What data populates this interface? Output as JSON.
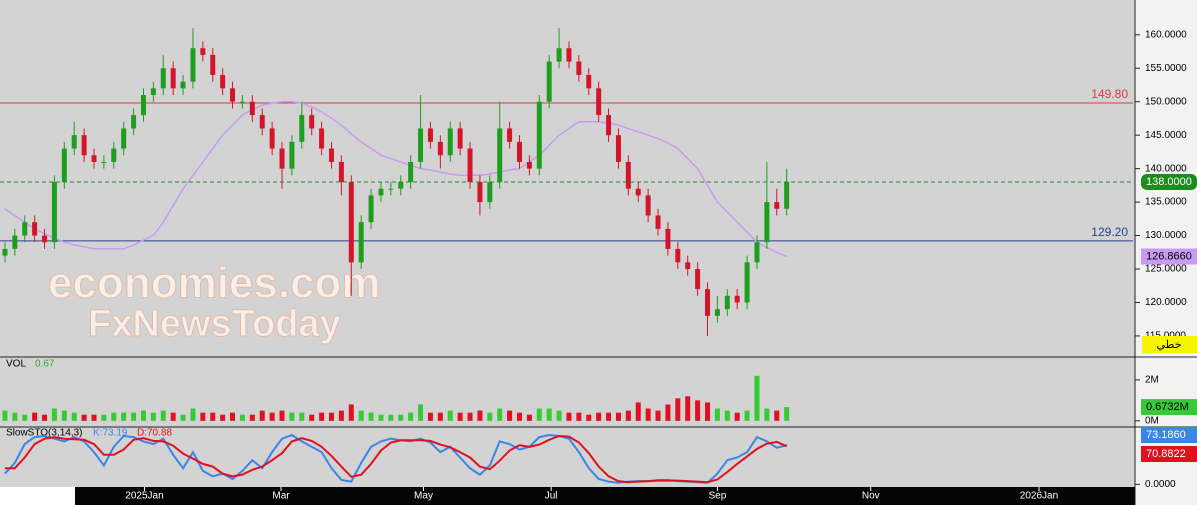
{
  "chart_data": {
    "type": "candlestick",
    "xlim": [
      0,
      114.5
    ],
    "xticks": [
      {
        "value": 14.6,
        "label": "2025Jan"
      },
      {
        "value": 28.4,
        "label": "Mar"
      },
      {
        "value": 42.8,
        "label": "May"
      },
      {
        "value": 55.7,
        "label": "Jul"
      },
      {
        "value": 72.5,
        "label": "Sep"
      },
      {
        "value": 88,
        "label": "Nov"
      },
      {
        "value": 105,
        "label": "2026Jan"
      }
    ],
    "ylim": [
      112,
      165.2
    ],
    "yticks": [
      {
        "value": 115,
        "label": "115.0000"
      },
      {
        "value": 120,
        "label": "120.0000"
      },
      {
        "value": 125,
        "label": "125.0000"
      },
      {
        "value": 130,
        "label": "130.0000"
      },
      {
        "value": 135,
        "label": "135.0000"
      },
      {
        "value": 140,
        "label": "140.0000"
      },
      {
        "value": 145,
        "label": "145.0000"
      },
      {
        "value": 150,
        "label": "150.0000"
      },
      {
        "value": 155,
        "label": "155.0000"
      },
      {
        "value": 160,
        "label": "160.0000"
      }
    ],
    "up_color": "#1e9e1e",
    "down_color": "#d4142a",
    "open": [
      127,
      128,
      130,
      132,
      130,
      129,
      138,
      143,
      145,
      142,
      141,
      141,
      143,
      146,
      148,
      151,
      152,
      155,
      152,
      153,
      158,
      157,
      154,
      152,
      150,
      150,
      148,
      146,
      143,
      140,
      144,
      148,
      146,
      143,
      141,
      138,
      126,
      132,
      136,
      137,
      137,
      138,
      141,
      146,
      144,
      142,
      146,
      143,
      138,
      135,
      138,
      146,
      144,
      141,
      140,
      150,
      156,
      158,
      156,
      154,
      152,
      148,
      145,
      141,
      137,
      136,
      133,
      131,
      128,
      126,
      125,
      122,
      118,
      119,
      121,
      120,
      126,
      129,
      135,
      134
    ],
    "high": [
      129,
      131,
      133,
      133,
      131,
      139,
      144,
      147,
      146,
      143,
      142,
      144,
      147,
      149,
      152,
      153,
      157,
      156,
      154,
      161,
      159,
      158,
      155,
      153,
      151,
      151,
      149,
      147,
      144,
      145,
      150,
      149,
      147,
      144,
      142,
      139,
      133,
      137,
      138,
      138,
      139,
      142,
      151,
      147,
      145,
      147,
      147,
      144,
      139,
      139,
      150,
      147,
      145,
      142,
      151,
      157,
      161,
      159,
      157,
      155,
      153,
      149,
      146,
      142,
      138,
      137,
      134,
      132,
      129,
      127,
      126,
      123,
      121,
      122,
      122,
      127,
      130,
      141,
      137,
      140
    ],
    "low": [
      126,
      127,
      129,
      129,
      128,
      128,
      137,
      142,
      141,
      140,
      140,
      140,
      142,
      145,
      147,
      150,
      151,
      151,
      151,
      152,
      156,
      153,
      151,
      149,
      149,
      147,
      145,
      142,
      137,
      139,
      143,
      145,
      142,
      140,
      136,
      121,
      125,
      131,
      135,
      136,
      136,
      137,
      140,
      143,
      140,
      141,
      142,
      137,
      133,
      134,
      137,
      143,
      140,
      139,
      139,
      149,
      155,
      155,
      153,
      151,
      147,
      144,
      140,
      136,
      135,
      132,
      130,
      127,
      125,
      124,
      121,
      115,
      117,
      118,
      119,
      119,
      125,
      128,
      133,
      133
    ],
    "close": [
      128,
      130,
      132,
      130,
      129,
      138,
      143,
      145,
      142,
      141,
      141,
      143,
      146,
      148,
      151,
      152,
      155,
      152,
      153,
      158,
      157,
      154,
      152,
      150,
      150,
      148,
      146,
      143,
      140,
      144,
      148,
      146,
      143,
      141,
      138,
      126,
      132,
      136,
      137,
      137,
      138,
      141,
      146,
      144,
      142,
      146,
      143,
      138,
      135,
      138,
      146,
      144,
      141,
      140,
      150,
      156,
      158,
      156,
      154,
      152,
      148,
      145,
      141,
      137,
      136,
      133,
      131,
      128,
      126,
      125,
      122,
      118,
      119,
      121,
      120,
      126,
      129,
      135,
      134,
      138
    ],
    "close_label": "138.0000",
    "moving_average": {
      "color": "#c99af2",
      "value_label": "126.8660",
      "values": [
        134,
        133,
        132,
        131,
        130.3,
        129.6,
        129,
        128.6,
        128.3,
        128,
        128,
        128,
        128,
        128.6,
        129.3,
        130,
        132,
        134.5,
        137,
        139,
        141,
        143,
        145,
        146.5,
        148,
        148.8,
        149.5,
        149.8,
        150,
        150,
        149.8,
        149.2,
        148.5,
        147.5,
        146.5,
        145.2,
        144,
        143,
        142,
        141.5,
        141,
        140.5,
        140,
        139.8,
        139.5,
        139.2,
        139,
        139,
        139,
        139.2,
        139.5,
        139.8,
        140,
        141,
        142,
        143.5,
        145,
        146,
        147,
        147,
        147,
        146.8,
        146.5,
        146,
        145.5,
        145,
        144.5,
        143.8,
        143,
        141.5,
        140,
        137.5,
        135,
        133.5,
        132,
        130.5,
        129,
        128.2,
        127.5,
        126.866
      ]
    },
    "levels": [
      {
        "value": 149.8,
        "label": "149.80",
        "color": "#e0394a"
      },
      {
        "value": 129.2,
        "label": "129.20",
        "color": "#2a3f8f"
      }
    ],
    "watermark": [
      "economies.com",
      "FxNewsToday"
    ],
    "mode_label": "خطي",
    "volume": {
      "title": "VOL",
      "value_label": "0.67",
      "last_label": "0.6732M",
      "ylim": [
        -0.3,
        3.07
      ],
      "yticks": [
        {
          "value": 0,
          "label": "0M"
        },
        {
          "value": 2,
          "label": "2M"
        }
      ],
      "values": [
        0.5,
        0.4,
        0.3,
        0.4,
        0.3,
        0.6,
        0.5,
        0.4,
        0.3,
        0.3,
        0.3,
        0.4,
        0.4,
        0.4,
        0.5,
        0.4,
        0.5,
        0.4,
        0.3,
        0.6,
        0.4,
        0.4,
        0.3,
        0.4,
        0.3,
        0.3,
        0.5,
        0.4,
        0.5,
        0.4,
        0.4,
        0.3,
        0.4,
        0.4,
        0.5,
        0.8,
        0.5,
        0.4,
        0.3,
        0.3,
        0.3,
        0.4,
        0.8,
        0.4,
        0.4,
        0.5,
        0.4,
        0.4,
        0.5,
        0.4,
        0.6,
        0.5,
        0.4,
        0.3,
        0.6,
        0.6,
        0.5,
        0.4,
        0.4,
        0.3,
        0.4,
        0.4,
        0.4,
        0.5,
        0.9,
        0.6,
        0.5,
        0.8,
        1.1,
        1.2,
        1.0,
        0.9,
        0.6,
        0.5,
        0.4,
        0.5,
        2.2,
        0.6,
        0.5,
        0.6732
      ]
    },
    "stochastic": {
      "title": "SlowSTO(3,14,3)",
      "ylim": [
        -5,
        105
      ],
      "yticks": [
        {
          "value": 0,
          "label": "0.0000"
        }
      ],
      "series": [
        {
          "name": "K:73.19",
          "color": "#3a86e8",
          "tag": "73.1860",
          "values": [
            20,
            40,
            75,
            88,
            90,
            85,
            80,
            88,
            80,
            60,
            35,
            70,
            90,
            88,
            80,
            75,
            85,
            55,
            30,
            60,
            25,
            15,
            20,
            10,
            25,
            45,
            30,
            60,
            85,
            92,
            80,
            70,
            60,
            30,
            8,
            5,
            40,
            70,
            80,
            85,
            82,
            80,
            85,
            78,
            60,
            70,
            50,
            30,
            18,
            35,
            80,
            75,
            65,
            70,
            88,
            92,
            90,
            85,
            60,
            30,
            10,
            5,
            3,
            5,
            6,
            6,
            8,
            8,
            6,
            5,
            4,
            3,
            20,
            45,
            50,
            60,
            88,
            80,
            68,
            73.186
          ]
        },
        {
          "name": "D:70.88",
          "color": "#e0101e",
          "tag": "70.8822",
          "values": [
            30,
            30,
            50,
            75,
            85,
            88,
            85,
            84,
            83,
            75,
            55,
            55,
            65,
            83,
            86,
            81,
            80,
            72,
            57,
            48,
            38,
            33,
            20,
            15,
            18,
            27,
            33,
            45,
            58,
            80,
            86,
            81,
            70,
            53,
            33,
            14,
            18,
            38,
            63,
            78,
            82,
            82,
            82,
            81,
            74,
            69,
            60,
            50,
            33,
            28,
            44,
            63,
            73,
            70,
            74,
            83,
            90,
            89,
            78,
            58,
            33,
            15,
            6,
            4,
            5,
            6,
            7,
            7,
            7,
            6,
            5,
            4,
            9,
            23,
            38,
            52,
            66,
            76,
            79,
            70.8822
          ]
        }
      ]
    }
  }
}
